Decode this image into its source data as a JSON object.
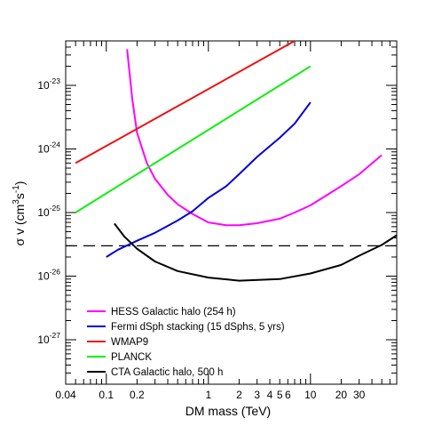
{
  "chart_data": {
    "type": "line",
    "xlabel": "DM mass (TeV)",
    "ylabel": {
      "base": "σ v (cm",
      "sup1": "3",
      "mid": "s",
      "sup2": "-1",
      "end": ")"
    },
    "xscale": "log",
    "yscale": "log",
    "xlim": [
      0.04,
      70
    ],
    "ylim": [
      2e-28,
      5e-23
    ],
    "x_tick_labels": [
      {
        "value": 0.04,
        "label": "0.04"
      },
      {
        "value": 0.1,
        "label": "0.1"
      },
      {
        "value": 0.2,
        "label": "0.2"
      },
      {
        "value": 1,
        "label": "1"
      },
      {
        "value": 2,
        "label": "2"
      },
      {
        "value": 3,
        "label": "3"
      },
      {
        "value": 4,
        "label": "4"
      },
      {
        "value": 5,
        "label": "5"
      },
      {
        "value": 6,
        "label": "6"
      },
      {
        "value": 10,
        "label": "10"
      },
      {
        "value": 20,
        "label": "20"
      },
      {
        "value": 30,
        "label": "30"
      }
    ],
    "y_tick_labels": [
      {
        "value": 1e-27,
        "exp": "-27"
      },
      {
        "value": 1e-26,
        "exp": "-26"
      },
      {
        "value": 1e-25,
        "exp": "-25"
      },
      {
        "value": 1e-24,
        "exp": "-24"
      },
      {
        "value": 1e-23,
        "exp": "-23"
      }
    ],
    "reference_line": {
      "name": "",
      "y": 3e-26,
      "style": "dashed",
      "color": "#000000"
    },
    "legend_position": "bottom-left",
    "series": [
      {
        "name": "HESS Galactic halo (254 h)",
        "color": "#ff00ff",
        "x": [
          0.16,
          0.18,
          0.2,
          0.25,
          0.3,
          0.4,
          0.5,
          0.7,
          1.0,
          1.5,
          2.0,
          3.0,
          5.0,
          7.0,
          10,
          20,
          30,
          50
        ],
        "y": [
          3.7e-23,
          6e-24,
          1.8e-24,
          6e-25,
          3.4e-25,
          1.9e-25,
          1.35e-25,
          9.5e-26,
          7e-26,
          6.3e-26,
          6.3e-26,
          6.8e-26,
          8e-26,
          1e-25,
          1.3e-25,
          2.6e-25,
          4e-25,
          8e-25
        ]
      },
      {
        "name": "Fermi dSph stacking (15 dSphs, 5 yrs)",
        "color": "#0000dd",
        "x": [
          0.1,
          0.13,
          0.2,
          0.3,
          0.5,
          0.7,
          1.0,
          1.5,
          2.0,
          3.0,
          5.0,
          7.0,
          10
        ],
        "y": [
          2e-26,
          2.6e-26,
          3.6e-26,
          4.8e-26,
          7.5e-26,
          1.05e-25,
          1.7e-25,
          2.6e-25,
          4e-25,
          7.5e-25,
          1.5e-24,
          2.5e-24,
          5.4e-24
        ]
      },
      {
        "name": "WMAP9",
        "color": "#ee1111",
        "x": [
          0.05,
          7.0
        ],
        "y": [
          6e-25,
          5e-23
        ]
      },
      {
        "name": "PLANCK",
        "color": "#11ee11",
        "x": [
          0.05,
          0.055,
          10
        ],
        "y": [
          1e-25,
          1.1e-25,
          2e-23
        ]
      },
      {
        "name": "CTA Galactic halo, 500 h",
        "color": "#000000",
        "x": [
          0.12,
          0.15,
          0.2,
          0.3,
          0.5,
          1.0,
          2.0,
          5.0,
          10,
          20,
          30,
          50,
          70
        ],
        "y": [
          6.7e-26,
          4.2e-26,
          2.7e-26,
          1.7e-26,
          1.2e-26,
          9.5e-27,
          8.5e-27,
          9e-27,
          1.1e-26,
          1.5e-26,
          2.1e-26,
          3.1e-26,
          4.4e-26
        ]
      }
    ]
  }
}
